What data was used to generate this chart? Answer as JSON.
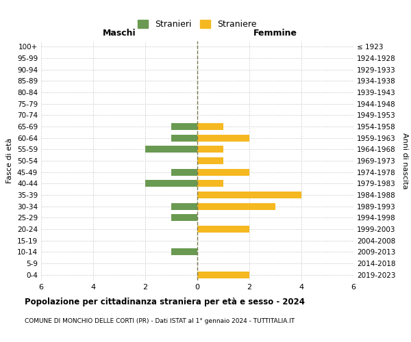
{
  "age_groups": [
    "100+",
    "95-99",
    "90-94",
    "85-89",
    "80-84",
    "75-79",
    "70-74",
    "65-69",
    "60-64",
    "55-59",
    "50-54",
    "45-49",
    "40-44",
    "35-39",
    "30-34",
    "25-29",
    "20-24",
    "15-19",
    "10-14",
    "5-9",
    "0-4"
  ],
  "birth_years": [
    "≤ 1923",
    "1924-1928",
    "1929-1933",
    "1934-1938",
    "1939-1943",
    "1944-1948",
    "1949-1953",
    "1954-1958",
    "1959-1963",
    "1964-1968",
    "1969-1973",
    "1974-1978",
    "1979-1983",
    "1984-1988",
    "1989-1993",
    "1994-1998",
    "1999-2003",
    "2004-2008",
    "2009-2013",
    "2014-2018",
    "2019-2023"
  ],
  "maschi": [
    0,
    0,
    0,
    0,
    0,
    0,
    0,
    1,
    1,
    2,
    0,
    1,
    2,
    0,
    1,
    1,
    0,
    0,
    1,
    0,
    0
  ],
  "femmine": [
    0,
    0,
    0,
    0,
    0,
    0,
    0,
    1,
    2,
    1,
    1,
    2,
    1,
    4,
    3,
    0,
    2,
    0,
    0,
    0,
    2
  ],
  "color_maschi": "#6a9a51",
  "color_femmine": "#f5b820",
  "label_maschi": "Stranieri",
  "label_femmine": "Straniere",
  "title": "Popolazione per cittadinanza straniera per età e sesso - 2024",
  "subtitle": "COMUNE DI MONCHIO DELLE CORTI (PR) - Dati ISTAT al 1° gennaio 2024 - TUTTITALIA.IT",
  "header_left": "Maschi",
  "header_right": "Femmine",
  "ylabel_left": "Fasce di età",
  "ylabel_right": "Anni di nascita",
  "xlim": 6,
  "bg_color": "#ffffff",
  "grid_color": "#cccccc",
  "centerline_color": "#7a7a50"
}
